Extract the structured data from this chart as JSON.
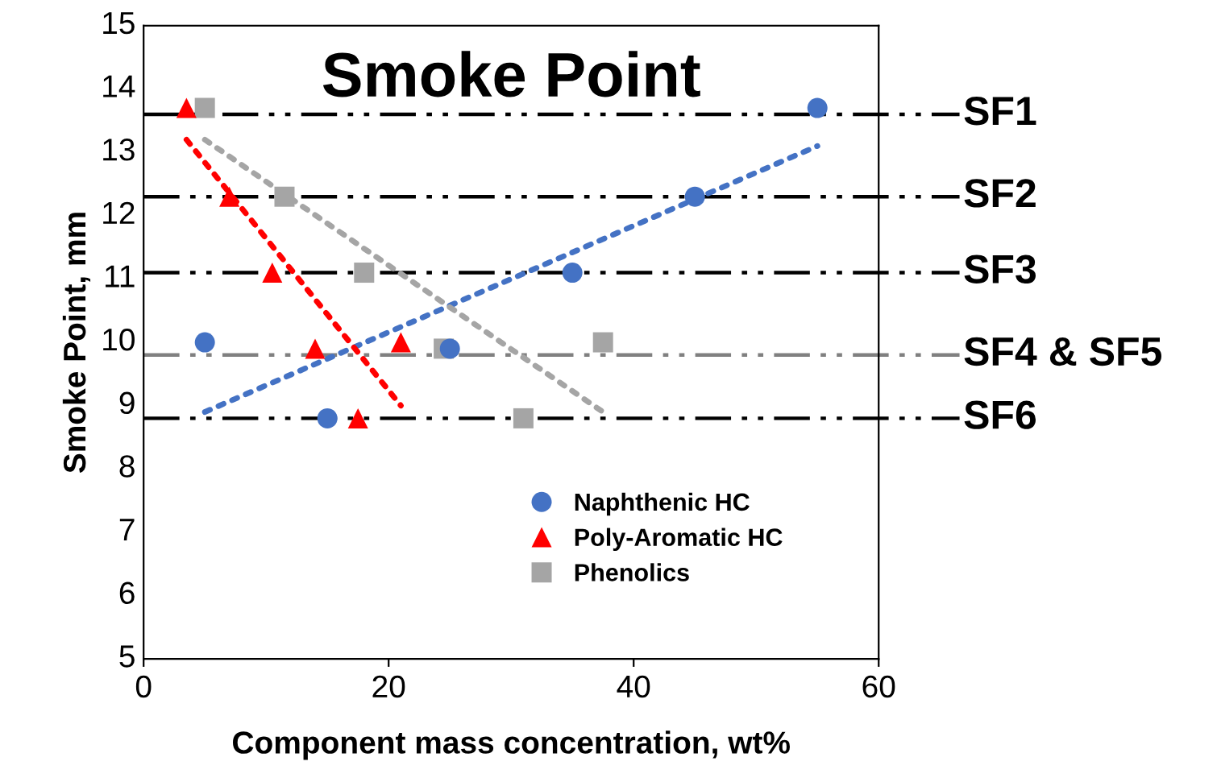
{
  "chart_data": {
    "type": "scatter",
    "title": "Smoke Point",
    "xlabel": "Component mass concentration, wt%",
    "ylabel": "Smoke Point, mm",
    "xlim": [
      0,
      60
    ],
    "xticks": [
      0,
      20,
      40,
      60
    ],
    "ylim": [
      5,
      15
    ],
    "yticks": [
      5,
      6,
      7,
      8,
      9,
      10,
      11,
      12,
      13,
      14,
      15
    ],
    "grid": false,
    "legend": "bottom right",
    "series": [
      {
        "name": "Naphthenic HC",
        "color": "#4472c4",
        "marker": "circle",
        "x": [
          5,
          15,
          25,
          35,
          45,
          55
        ],
        "values": [
          10.0,
          8.8,
          9.9,
          11.1,
          12.3,
          13.7
        ]
      },
      {
        "name": "Poly-Aromatic HC",
        "color": "#ff0000",
        "marker": "triangle",
        "x": [
          3.5,
          7,
          10.5,
          14,
          17.5,
          21
        ],
        "values": [
          13.7,
          12.3,
          11.1,
          9.9,
          8.8,
          10.0
        ]
      },
      {
        "name": "Phenolics",
        "color": "#a5a5a5",
        "marker": "square",
        "x": [
          5,
          11.5,
          18,
          24.5,
          31,
          37.5
        ],
        "values": [
          13.7,
          12.3,
          11.1,
          9.9,
          8.8,
          10.0
        ]
      },
      {
        "type": "line",
        "color": "#4472c4",
        "marker": "none",
        "line_style": "dotted",
        "x": [
          5,
          55
        ],
        "values": [
          8.9,
          13.1
        ]
      },
      {
        "type": "line",
        "color": "#ff0000",
        "marker": "none",
        "line_style": "dotted",
        "x": [
          3.5,
          21
        ],
        "values": [
          13.2,
          9.0
        ]
      },
      {
        "type": "line",
        "color": "#a5a5a5",
        "marker": "none",
        "line_style": "dotted",
        "x": [
          5,
          37.5
        ],
        "values": [
          13.2,
          8.9
        ]
      }
    ],
    "ref_lines": [
      {
        "axis": "y",
        "value": 13.6,
        "label": "SF1",
        "color": "#000000"
      },
      {
        "axis": "y",
        "value": 12.3,
        "label": "SF2",
        "color": "#000000"
      },
      {
        "axis": "y",
        "value": 11.1,
        "label": "SF3",
        "color": "#000000"
      },
      {
        "axis": "y",
        "value": 9.8,
        "label": "SF4 & SF5",
        "color": "#808080"
      },
      {
        "axis": "y",
        "value": 8.8,
        "label": "SF6",
        "color": "#000000"
      }
    ]
  }
}
